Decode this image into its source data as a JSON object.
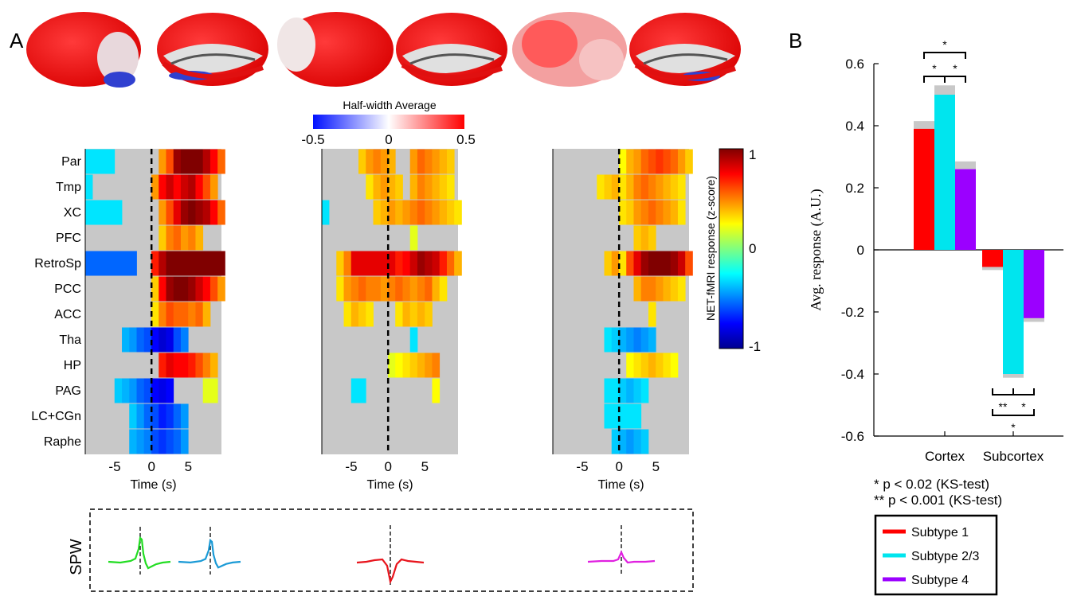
{
  "panel_labels": {
    "a": "A",
    "b": "B"
  },
  "colorbar_top": {
    "title": "Half-width Average",
    "ticks": [
      "-0.5",
      "0",
      "0.5"
    ]
  },
  "colorbar_right": {
    "title": "NET-fMRI response (z-score)",
    "ticks": [
      "1",
      "0",
      "-1"
    ]
  },
  "heatmap_common": {
    "regions": [
      "Par",
      "Tmp",
      "XC",
      "PFC",
      "RetroSp",
      "PCC",
      "ACC",
      "Tha",
      "HP",
      "PAG",
      "LC+CGn",
      "Raphe"
    ],
    "xlabel": "Time (s)",
    "xticks": [
      "-5",
      "0",
      "5"
    ]
  },
  "spw": {
    "label": "SPW"
  },
  "significance": {
    "line1": "* p < 0.02 (KS-test)",
    "line2": "** p < 0.001 (KS-test)",
    "star": "*",
    "dstar": "**"
  },
  "colors": {
    "subtype1": "#ff0000",
    "subtype23": "#00e5ee",
    "subtype4": "#9b00ff",
    "gray": "#c8c8c8",
    "spw_green": "#22dd22",
    "spw_blue": "#1a9ad6",
    "spw_red": "#e8141c",
    "spw_magenta": "#e020e0"
  },
  "chart_data": [
    {
      "type": "heatmap",
      "panel": "A-subtype1",
      "rows": [
        "Par",
        "Tmp",
        "XC",
        "PFC",
        "RetroSp",
        "PCC",
        "ACC",
        "Tha",
        "HP",
        "PAG",
        "LC+CGn",
        "Raphe"
      ],
      "x": [
        -9,
        -8,
        -7,
        -6,
        -5,
        -4,
        -3,
        -2,
        -1,
        0,
        1,
        2,
        3,
        4,
        5,
        6,
        7,
        8,
        9
      ],
      "xlim": [
        -9,
        9.5
      ],
      "zlim": [
        -1,
        1
      ],
      "values": [
        [
          -0.3,
          -0.3,
          -0.3,
          -0.3,
          null,
          null,
          null,
          null,
          null,
          null,
          0.45,
          0.6,
          0.95,
          1,
          1,
          1,
          0.9,
          0.75,
          0.55
        ],
        [
          -0.3,
          null,
          null,
          null,
          null,
          null,
          null,
          null,
          null,
          0.45,
          0.75,
          0.85,
          0.75,
          0.85,
          0.9,
          0.75,
          0.6,
          0.45,
          null
        ],
        [
          -0.3,
          -0.3,
          -0.3,
          -0.3,
          -0.3,
          null,
          null,
          null,
          null,
          null,
          0.45,
          0.6,
          0.8,
          0.95,
          1,
          0.95,
          0.9,
          0.75,
          0.55
        ],
        [
          null,
          null,
          null,
          null,
          null,
          null,
          null,
          null,
          null,
          null,
          0.35,
          0.5,
          0.55,
          0.45,
          0.5,
          0.4,
          null,
          null,
          null
        ],
        [
          -0.55,
          -0.55,
          -0.55,
          -0.55,
          -0.55,
          -0.55,
          -0.55,
          null,
          null,
          0.7,
          0.9,
          1,
          1,
          1,
          1,
          1,
          1,
          1,
          1
        ],
        [
          null,
          null,
          null,
          null,
          null,
          null,
          null,
          null,
          null,
          0.35,
          0.75,
          0.95,
          1,
          1,
          0.95,
          0.85,
          0.75,
          0.6,
          0.45
        ],
        [
          null,
          null,
          null,
          null,
          null,
          null,
          null,
          null,
          null,
          0.3,
          0.5,
          0.6,
          0.55,
          0.55,
          0.5,
          0.55,
          0.4,
          null,
          null
        ],
        [
          null,
          null,
          null,
          null,
          null,
          -0.4,
          -0.45,
          -0.55,
          -0.6,
          -0.75,
          -0.85,
          -0.8,
          -0.6,
          -0.5,
          null,
          null,
          null,
          null,
          null
        ],
        [
          null,
          null,
          null,
          null,
          null,
          null,
          null,
          null,
          null,
          null,
          0.7,
          0.8,
          0.75,
          0.75,
          0.7,
          0.6,
          0.5,
          0.4,
          null
        ],
        [
          null,
          null,
          null,
          null,
          -0.35,
          -0.4,
          -0.45,
          -0.55,
          -0.6,
          -0.75,
          -0.8,
          -0.75,
          null,
          null,
          null,
          null,
          0.2,
          0.2,
          null
        ],
        [
          null,
          null,
          null,
          null,
          null,
          null,
          -0.35,
          -0.45,
          -0.55,
          -0.6,
          -0.7,
          -0.65,
          -0.55,
          -0.45,
          null,
          null,
          null,
          null,
          null
        ],
        [
          null,
          null,
          null,
          null,
          null,
          null,
          -0.4,
          -0.45,
          -0.5,
          -0.6,
          -0.65,
          -0.6,
          -0.55,
          -0.45,
          null,
          null,
          null,
          null,
          null
        ]
      ]
    },
    {
      "type": "heatmap",
      "panel": "A-subtype2/3",
      "rows": [
        "Par",
        "Tmp",
        "XC",
        "PFC",
        "RetroSp",
        "PCC",
        "ACC",
        "Tha",
        "HP",
        "PAG",
        "LC+CGn",
        "Raphe"
      ],
      "x": [
        -9,
        -8,
        -7,
        -6,
        -5,
        -4,
        -3,
        -2,
        -1,
        0,
        1,
        2,
        3,
        4,
        5,
        6,
        7,
        8,
        9
      ],
      "xlim": [
        -9,
        9.5
      ],
      "zlim": [
        -1,
        1
      ],
      "values": [
        [
          null,
          null,
          null,
          null,
          null,
          0.35,
          0.45,
          0.5,
          0.45,
          0.4,
          null,
          null,
          0.45,
          0.55,
          0.5,
          0.45,
          0.4,
          0.35,
          null
        ],
        [
          null,
          null,
          null,
          null,
          null,
          null,
          0.3,
          0.4,
          0.45,
          0.4,
          0.35,
          null,
          0.4,
          0.5,
          0.45,
          0.4,
          0.35,
          0.3,
          null
        ],
        [
          -0.3,
          null,
          null,
          null,
          null,
          null,
          null,
          0.35,
          0.4,
          0.45,
          0.4,
          0.45,
          0.5,
          0.55,
          0.5,
          0.45,
          0.4,
          0.35,
          0.3
        ],
        [
          null,
          null,
          null,
          null,
          null,
          null,
          null,
          null,
          null,
          null,
          null,
          null,
          0.2,
          null,
          null,
          null,
          null,
          null,
          null
        ],
        [
          null,
          null,
          0.35,
          0.5,
          0.8,
          0.8,
          0.8,
          0.8,
          0.8,
          0.8,
          0.7,
          0.75,
          0.85,
          0.95,
          0.9,
          0.85,
          0.7,
          0.55,
          0.4
        ],
        [
          null,
          null,
          0.3,
          0.45,
          0.5,
          0.55,
          0.5,
          0.5,
          0.45,
          0.5,
          0.55,
          0.5,
          0.45,
          0.5,
          0.55,
          0.4,
          0.3,
          null,
          null
        ],
        [
          null,
          null,
          null,
          0.3,
          0.4,
          0.35,
          0.3,
          null,
          null,
          null,
          0.3,
          0.4,
          0.35,
          0.4,
          0.35,
          null,
          null,
          null,
          null
        ],
        [
          null,
          null,
          null,
          null,
          null,
          null,
          null,
          null,
          null,
          null,
          null,
          null,
          -0.3,
          null,
          null,
          null,
          null,
          null,
          null
        ],
        [
          null,
          null,
          null,
          null,
          null,
          null,
          null,
          null,
          null,
          0.2,
          0.25,
          0.3,
          0.35,
          0.4,
          0.45,
          0.5,
          null,
          null,
          null
        ],
        [
          null,
          null,
          null,
          null,
          -0.3,
          -0.3,
          null,
          null,
          null,
          null,
          null,
          null,
          null,
          null,
          null,
          0.25,
          null,
          null,
          null
        ],
        [
          null,
          null,
          null,
          null,
          null,
          null,
          null,
          null,
          null,
          null,
          null,
          null,
          null,
          null,
          null,
          null,
          null,
          null,
          null
        ],
        [
          null,
          null,
          null,
          null,
          null,
          null,
          null,
          null,
          null,
          null,
          null,
          null,
          null,
          null,
          null,
          null,
          null,
          null,
          null
        ]
      ]
    },
    {
      "type": "heatmap",
      "panel": "A-subtype4",
      "rows": [
        "Par",
        "Tmp",
        "XC",
        "PFC",
        "RetroSp",
        "PCC",
        "ACC",
        "Tha",
        "HP",
        "PAG",
        "LC+CGn",
        "Raphe"
      ],
      "x": [
        -9,
        -8,
        -7,
        -6,
        -5,
        -4,
        -3,
        -2,
        -1,
        0,
        1,
        2,
        3,
        4,
        5,
        6,
        7,
        8,
        9
      ],
      "xlim": [
        -9,
        9.5
      ],
      "zlim": [
        -1,
        1
      ],
      "values": [
        [
          null,
          null,
          null,
          null,
          null,
          null,
          null,
          null,
          null,
          0.25,
          0.4,
          0.45,
          0.55,
          0.6,
          0.65,
          0.6,
          0.55,
          0.45,
          0.35
        ],
        [
          null,
          null,
          null,
          null,
          null,
          null,
          0.3,
          0.35,
          0.4,
          0.3,
          0.4,
          0.5,
          0.55,
          0.5,
          0.45,
          0.4,
          0.35,
          0.3,
          null
        ],
        [
          null,
          null,
          null,
          null,
          null,
          null,
          null,
          null,
          null,
          0.3,
          0.35,
          0.45,
          0.5,
          0.55,
          0.5,
          0.45,
          0.4,
          0.3,
          null
        ],
        [
          null,
          null,
          null,
          null,
          null,
          null,
          null,
          null,
          null,
          null,
          null,
          0.35,
          0.4,
          0.35,
          null,
          null,
          null,
          null,
          null
        ],
        [
          null,
          null,
          null,
          null,
          null,
          null,
          null,
          0.35,
          0.45,
          0.3,
          0.6,
          0.8,
          0.95,
          1,
          1,
          1,
          0.95,
          0.85,
          0.6
        ],
        [
          null,
          null,
          null,
          null,
          null,
          null,
          null,
          null,
          null,
          null,
          null,
          0.4,
          0.5,
          0.5,
          0.45,
          0.4,
          0.35,
          0.3,
          null
        ],
        [
          null,
          null,
          null,
          null,
          null,
          null,
          null,
          null,
          null,
          null,
          null,
          null,
          null,
          0.3,
          null,
          null,
          null,
          null,
          null
        ],
        [
          null,
          null,
          null,
          null,
          null,
          null,
          null,
          -0.3,
          -0.35,
          -0.4,
          -0.45,
          -0.5,
          -0.45,
          -0.4,
          null,
          null,
          null,
          null,
          null
        ],
        [
          null,
          null,
          null,
          null,
          null,
          null,
          null,
          null,
          null,
          null,
          0.25,
          0.3,
          0.35,
          0.4,
          0.35,
          0.3,
          0.25,
          null,
          null
        ],
        [
          null,
          null,
          null,
          null,
          null,
          null,
          null,
          -0.3,
          -0.3,
          -0.35,
          -0.4,
          -0.35,
          -0.3,
          null,
          null,
          null,
          null,
          null,
          null
        ],
        [
          null,
          null,
          null,
          null,
          null,
          null,
          null,
          -0.3,
          -0.3,
          -0.3,
          -0.3,
          -0.3,
          null,
          null,
          null,
          null,
          null,
          null,
          null
        ],
        [
          null,
          null,
          null,
          null,
          null,
          null,
          null,
          null,
          -0.35,
          -0.4,
          -0.45,
          -0.4,
          -0.35,
          null,
          null,
          null,
          null,
          null,
          null
        ]
      ]
    },
    {
      "type": "bar",
      "panel": "B",
      "categories": [
        "Cortex",
        "Subcortex"
      ],
      "ylabel": "Avg. response (A.U.)",
      "ylim": [
        -0.6,
        0.6
      ],
      "yticks": [
        "0.6",
        "0.4",
        "0.2",
        "0",
        "-0.2",
        "-0.4",
        "-0.6"
      ],
      "series": [
        {
          "name": "Subtype 1",
          "values": [
            0.39,
            -0.055
          ],
          "sem": [
            0.025,
            0.01
          ]
        },
        {
          "name": "Subtype 2/3",
          "values": [
            0.5,
            -0.4
          ],
          "sem": [
            0.03,
            0.012
          ]
        },
        {
          "name": "Subtype 4",
          "values": [
            0.26,
            -0.22
          ],
          "sem": [
            0.025,
            0.012
          ]
        }
      ]
    }
  ]
}
